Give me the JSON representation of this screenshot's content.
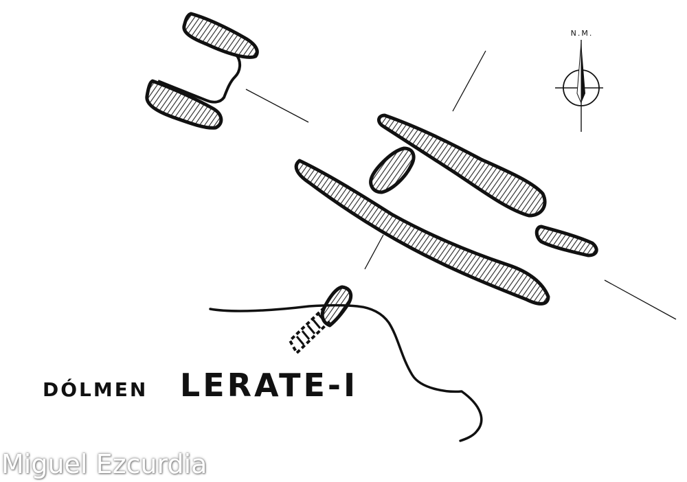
{
  "diagram": {
    "type": "archaeological site plan",
    "subject": "dolmen",
    "north_arrow": {
      "label": "N.M."
    },
    "title": {
      "word1": "DÓLMEN",
      "word2": "LERATE-I"
    },
    "credit": "Miguel Ezcurdia",
    "colors": {
      "ink": "#111111",
      "stone_fill": "#9a9a9a",
      "paper": "#ffffff"
    }
  }
}
